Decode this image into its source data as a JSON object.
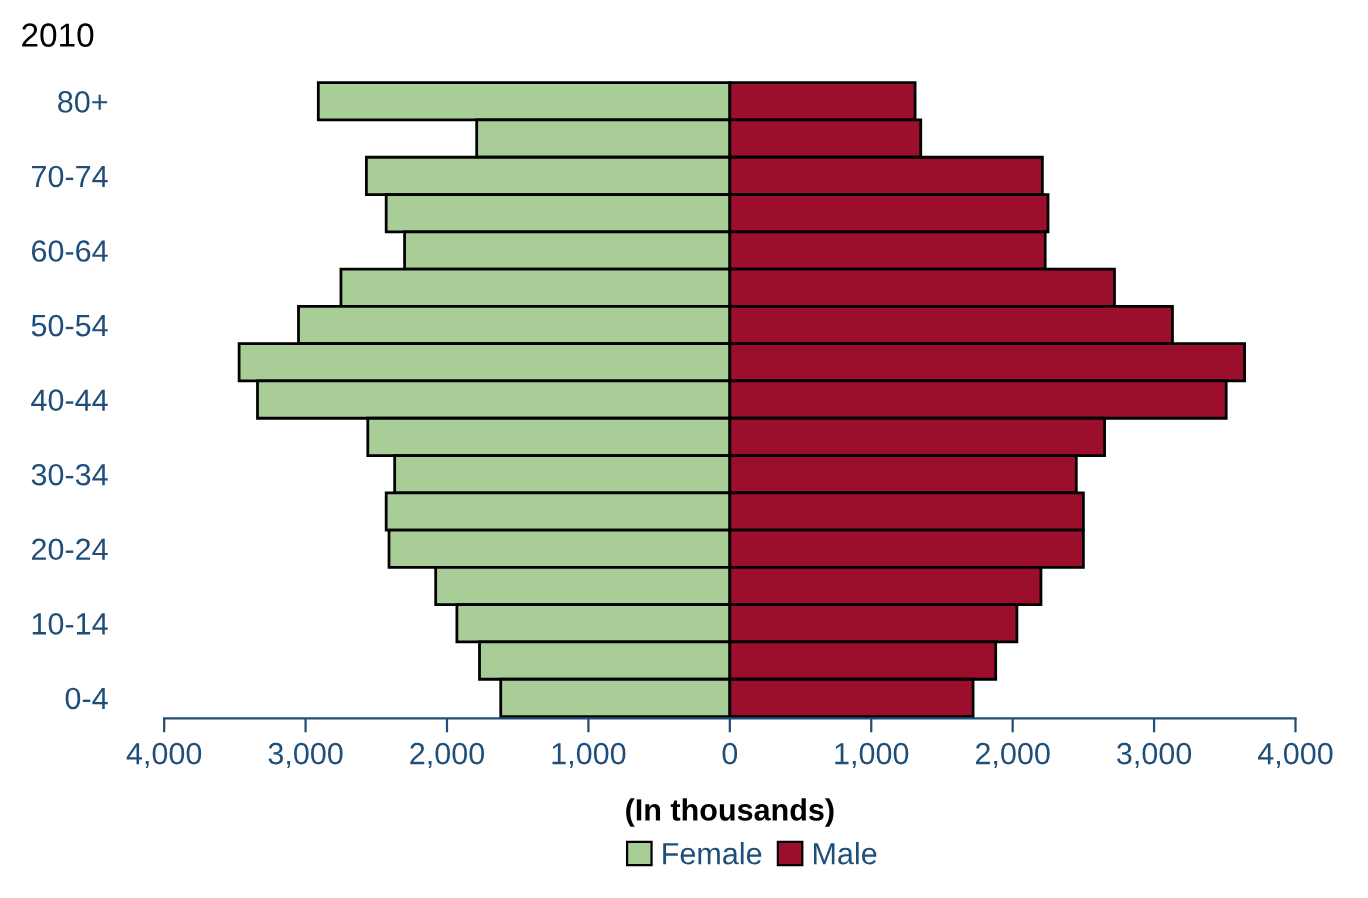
{
  "chart_data": {
    "type": "bar",
    "orientation": "horizontal",
    "stacked": true,
    "title": "2010",
    "xlabel": "(In thousands)",
    "categories": [
      "80+",
      null,
      "70-74",
      null,
      "60-64",
      null,
      "50-54",
      null,
      "40-44",
      null,
      "30-34",
      null,
      "20-24",
      null,
      "10-14",
      null,
      "0-4"
    ],
    "series": [
      {
        "name": "Female",
        "color": "#a9cd96",
        "values": [
          -2910,
          -1790,
          -2570,
          -2430,
          -2300,
          -2750,
          -3050,
          -3470,
          -3340,
          -2560,
          -2370,
          -2430,
          -2410,
          -2080,
          -1930,
          -1770,
          -1620
        ]
      },
      {
        "name": "Male",
        "color": "#9b0f2c",
        "values": [
          1310,
          1350,
          2210,
          2250,
          2230,
          2720,
          3130,
          3640,
          3510,
          2650,
          2450,
          2500,
          2500,
          2200,
          2030,
          1880,
          1720
        ]
      }
    ],
    "xlim": [
      -4000,
      4000
    ],
    "xticks": [
      {
        "value": -4000,
        "label": "4,000"
      },
      {
        "value": -3000,
        "label": "3,000"
      },
      {
        "value": -2000,
        "label": "2,000"
      },
      {
        "value": -1000,
        "label": "1,000"
      },
      0,
      {
        "value": 1000,
        "label": "1,000"
      },
      {
        "value": 2000,
        "label": "2,000"
      },
      {
        "value": 3000,
        "label": "3,000"
      },
      {
        "value": 4000,
        "label": "4,000"
      }
    ],
    "grid": false,
    "legend": "bottom"
  }
}
